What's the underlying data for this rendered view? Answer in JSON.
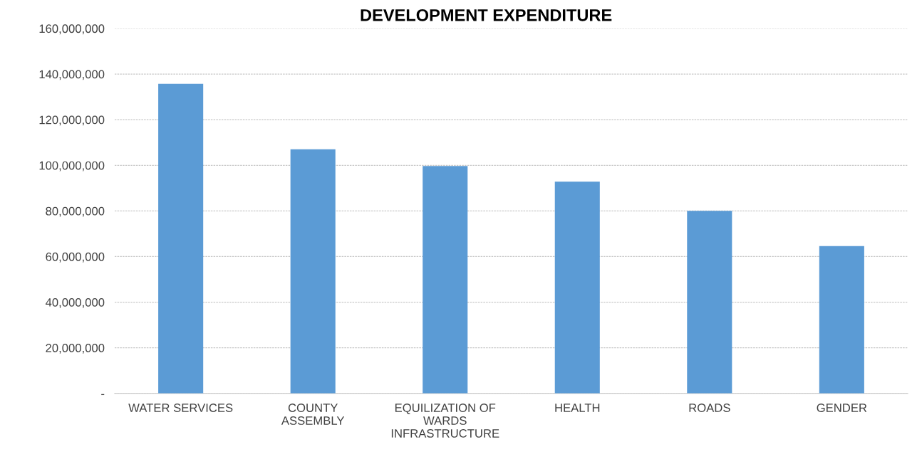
{
  "chart_data": {
    "type": "bar",
    "title": "DEVELOPMENT EXPENDITURE",
    "categories": [
      "WATER SERVICES",
      "COUNTY\nASSEMBLY",
      "EQUILIZATION OF\nWARDS\nINFRASTRUCTURE",
      "HEALTH",
      "ROADS",
      "GENDER"
    ],
    "values": [
      135700000,
      107000000,
      99700000,
      92800000,
      80000000,
      64600000
    ],
    "color": "#5b9bd5",
    "ylim": [
      0,
      160000000
    ],
    "yticks": [
      {
        "value": 0,
        "label": "-"
      },
      {
        "value": 20000000,
        "label": "20,000,000"
      },
      {
        "value": 40000000,
        "label": "40,000,000"
      },
      {
        "value": 60000000,
        "label": "60,000,000"
      },
      {
        "value": 80000000,
        "label": "80,000,000"
      },
      {
        "value": 100000000,
        "label": "100,000,000"
      },
      {
        "value": 120000000,
        "label": "120,000,000"
      },
      {
        "value": 140000000,
        "label": "140,000,000"
      },
      {
        "value": 160000000,
        "label": "160,000,000"
      }
    ],
    "grid": "y"
  }
}
